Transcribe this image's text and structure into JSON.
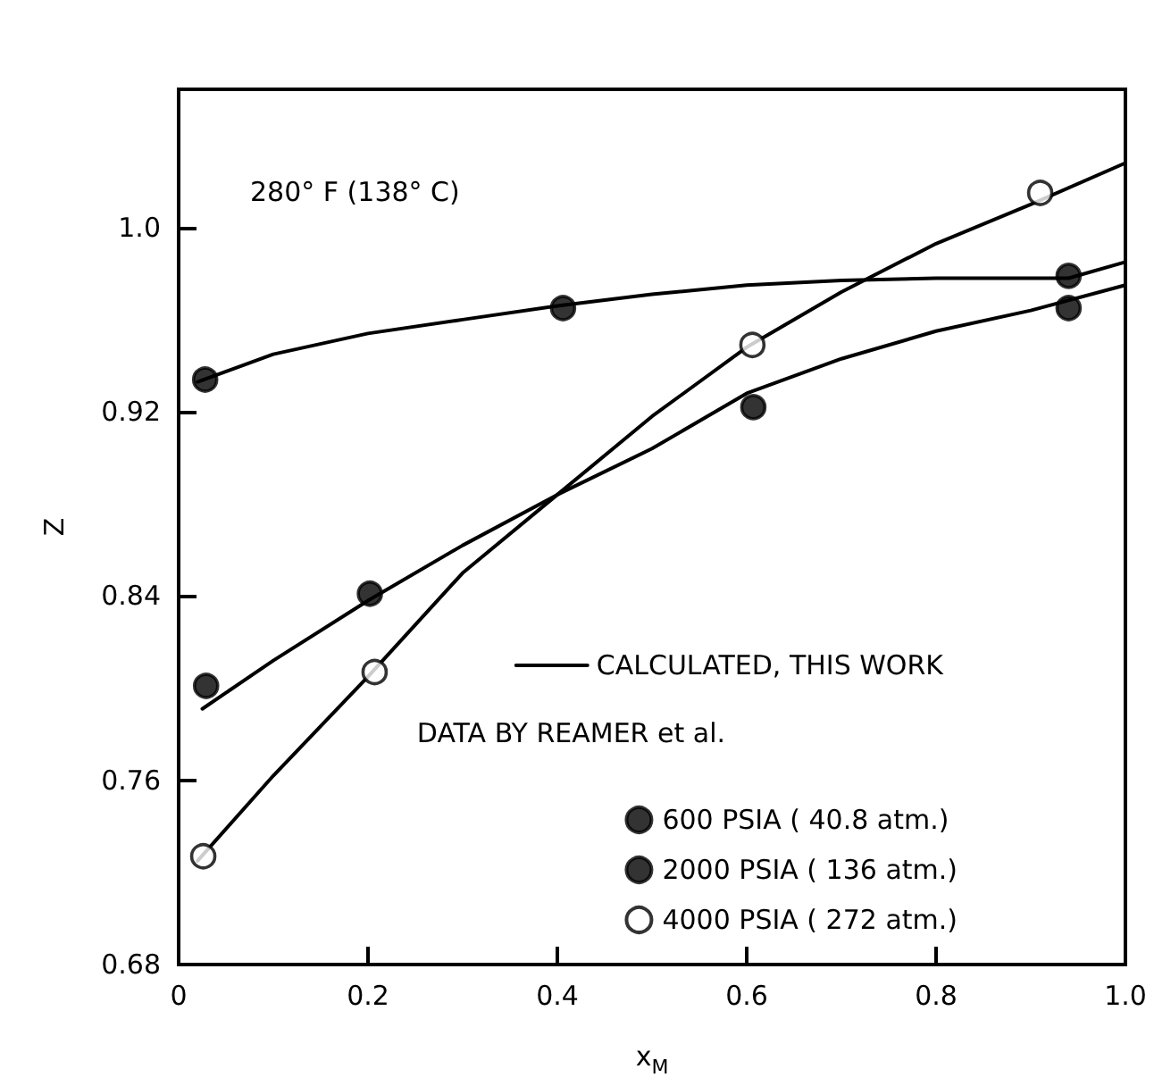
{
  "chart_data": {
    "type": "scatter",
    "xlabel": "x$_{M}$",
    "ylabel": "Z",
    "annotations": [
      "280° F (138° C)"
    ],
    "legend_title": "DATA BY REAMER et al.",
    "legend": "bottom right",
    "grid": false,
    "xlim": [
      0,
      1
    ],
    "xticks": [
      0,
      0.2,
      0.4,
      0.6,
      0.8,
      {
        "value": 1,
        "label": "1.0"
      }
    ],
    "ylim": [
      0.68,
      1.06
    ],
    "yticks": [
      0.68,
      0.76,
      0.84,
      0.92,
      {
        "value": 1,
        "label": "1.0"
      }
    ],
    "series": [
      {
        "type": "line",
        "name": "CALCULATED, THIS WORK",
        "color": "#000000",
        "marker": "none",
        "line_style": "solid",
        "x": [
          0.02,
          0.1,
          0.2,
          0.3,
          0.4,
          0.5,
          0.6,
          0.7,
          0.8,
          0.9,
          0.94,
          1.0
        ],
        "values": [
          0.933,
          0.945,
          0.954,
          0.96,
          0.966,
          0.971,
          0.975,
          0.977,
          0.978,
          0.978,
          0.978,
          0.985
        ]
      },
      {
        "type": "line",
        "color": "#000000",
        "marker": "none",
        "line_style": "solid",
        "x": [
          0.025,
          0.1,
          0.2,
          0.3,
          0.4,
          0.5,
          0.6,
          0.7,
          0.8,
          0.9,
          1.0
        ],
        "values": [
          0.791,
          0.812,
          0.838,
          0.862,
          0.884,
          0.904,
          0.928,
          0.943,
          0.955,
          0.964,
          0.975
        ]
      },
      {
        "type": "line",
        "color": "#000000",
        "marker": "none",
        "line_style": "solid",
        "x": [
          0.02,
          0.1,
          0.2,
          0.3,
          0.4,
          0.5,
          0.6,
          0.7,
          0.8,
          0.9,
          1.0
        ],
        "values": [
          0.725,
          0.762,
          0.805,
          0.85,
          0.884,
          0.918,
          0.948,
          0.972,
          0.993,
          1.01,
          1.028
        ]
      },
      {
        "name": "600 PSIA ( 40.8 atm.)",
        "color": "#000000",
        "marker": "circle",
        "x": [
          0.028,
          0.406,
          0.94
        ],
        "values": [
          0.934,
          0.965,
          0.979
        ]
      },
      {
        "name": "2000 PSIA ( 136 atm.)",
        "color": "#000000",
        "marker": "circle",
        "x": [
          0.029,
          0.202,
          0.607,
          0.94
        ],
        "values": [
          0.801,
          0.841,
          0.922,
          0.965
        ]
      },
      {
        "name": "4000 PSIA ( 272 atm.)",
        "color": "#ffffff",
        "marker": "circle",
        "x": [
          0.026,
          0.207,
          0.606,
          0.91
        ],
        "values": [
          0.727,
          0.807,
          0.949,
          1.015
        ]
      }
    ]
  }
}
